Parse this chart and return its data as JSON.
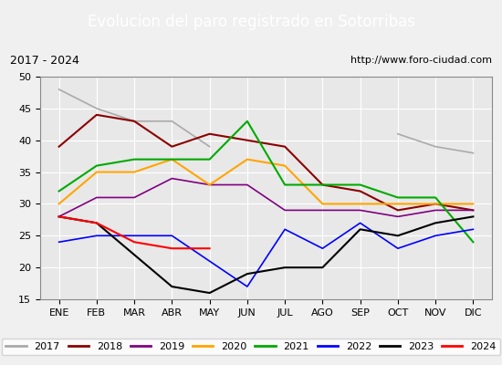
{
  "title": "Evolucion del paro registrado en Sotorribas",
  "subtitle_left": "2017 - 2024",
  "subtitle_right": "http://www.foro-ciudad.com",
  "months": [
    "ENE",
    "FEB",
    "MAR",
    "ABR",
    "MAY",
    "JUN",
    "JUL",
    "AGO",
    "SEP",
    "OCT",
    "NOV",
    "DIC"
  ],
  "ylim": [
    15,
    50
  ],
  "yticks": [
    15,
    20,
    25,
    30,
    35,
    40,
    45,
    50
  ],
  "series": {
    "2017": {
      "color": "#aaaaaa",
      "linewidth": 1.2,
      "linestyle": "-",
      "data": [
        48,
        45,
        43,
        43,
        39,
        null,
        null,
        null,
        null,
        41,
        39,
        38
      ]
    },
    "2018": {
      "color": "#8b0000",
      "linewidth": 1.5,
      "linestyle": "-",
      "data": [
        39,
        44,
        43,
        39,
        41,
        40,
        39,
        33,
        32,
        29,
        30,
        29
      ]
    },
    "2019": {
      "color": "#800080",
      "linewidth": 1.2,
      "linestyle": "-",
      "data": [
        28,
        31,
        31,
        34,
        33,
        33,
        29,
        29,
        29,
        28,
        29,
        29
      ]
    },
    "2020": {
      "color": "#ffa500",
      "linewidth": 1.5,
      "linestyle": "-",
      "data": [
        30,
        35,
        35,
        37,
        33,
        37,
        36,
        30,
        30,
        30,
        30,
        30
      ]
    },
    "2021": {
      "color": "#00aa00",
      "linewidth": 1.5,
      "linestyle": "-",
      "data": [
        32,
        36,
        37,
        37,
        37,
        43,
        33,
        33,
        33,
        31,
        31,
        24
      ]
    },
    "2022": {
      "color": "#0000ff",
      "linewidth": 1.2,
      "linestyle": "-",
      "data": [
        24,
        25,
        25,
        25,
        21,
        17,
        26,
        23,
        27,
        23,
        25,
        26
      ]
    },
    "2023": {
      "color": "#000000",
      "linewidth": 1.5,
      "linestyle": "-",
      "data": [
        28,
        27,
        22,
        17,
        16,
        19,
        20,
        20,
        26,
        25,
        27,
        28
      ]
    },
    "2024": {
      "color": "#ff0000",
      "linewidth": 1.5,
      "linestyle": "-",
      "data": [
        28,
        27,
        24,
        23,
        23,
        null,
        null,
        null,
        null,
        null,
        null,
        null
      ]
    }
  },
  "background_color": "#f0f0f0",
  "plot_bg_color": "#e8e8e8",
  "title_bg_color": "#4472c4",
  "title_color": "white",
  "header_bg_color": "#d8d8d8",
  "grid_color": "white",
  "title_fontsize": 12,
  "tick_fontsize": 8,
  "legend_fontsize": 8
}
